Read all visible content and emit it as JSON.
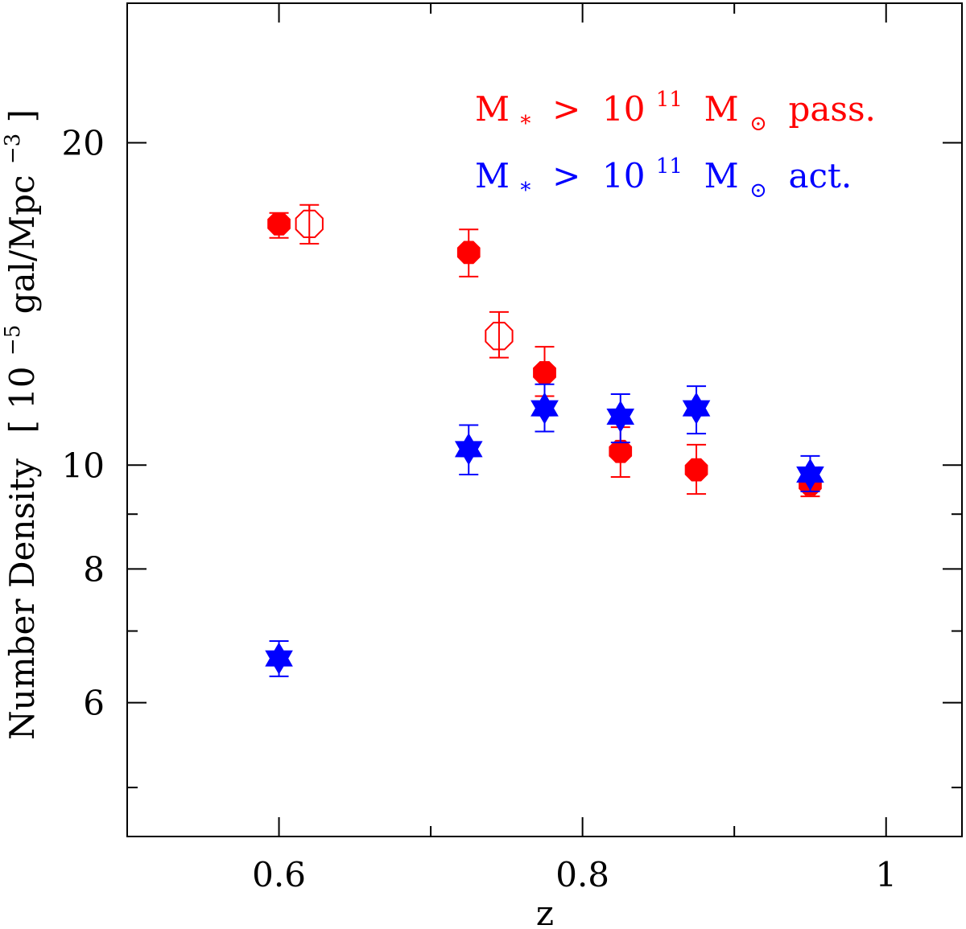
{
  "chart_data": {
    "type": "scatter",
    "title": "",
    "xlabel": "z",
    "ylabel": {
      "main": "Number Density",
      "bracket_open": "[",
      "base": "10",
      "exponent": "−5",
      "unit": " gal/Mpc",
      "unit_exponent": "−3",
      "bracket_close": "]"
    },
    "xlim": [
      0.5,
      1.05
    ],
    "ylim": [
      4.5,
      27.0
    ],
    "yscale": "log",
    "x_ticks": [
      {
        "value": 0.6,
        "label": "0.6"
      },
      {
        "value": 0.8,
        "label": "0.8"
      },
      {
        "value": 1.0,
        "label": "1"
      }
    ],
    "y_ticks": [
      {
        "value": 6,
        "label": "6"
      },
      {
        "value": 8,
        "label": "8"
      },
      {
        "value": 10,
        "label": "10"
      },
      {
        "value": 20,
        "label": "20"
      }
    ],
    "y_minor_ticks": [
      5,
      7,
      9
    ],
    "x_minor_ticks": [
      0.5,
      0.7,
      0.9
    ],
    "legend": {
      "placement": "top-right",
      "entries": [
        {
          "symbol": "M",
          "sub": "*",
          "rel": " > ",
          "base": "10",
          "sup": "11",
          "unit": " M",
          "sun": "⊙",
          "tag": " pass.",
          "color": "#ff0000"
        },
        {
          "symbol": "M",
          "sub": "*",
          "rel": " > ",
          "base": "10",
          "sup": "11",
          "unit": " M",
          "sun": "⊙",
          "tag": " act.",
          "color": "#0000ff"
        }
      ]
    },
    "series": [
      {
        "name": "M* > 10^11 Msun passive",
        "marker": "filled-circle",
        "color": "#ff0000",
        "points": [
          {
            "x": 0.6,
            "y": 16.8,
            "ylo": 16.3,
            "yhi": 17.2
          },
          {
            "x": 0.725,
            "y": 15.8,
            "ylo": 15.0,
            "yhi": 16.6
          },
          {
            "x": 0.775,
            "y": 12.2,
            "ylo": 11.6,
            "yhi": 12.9
          },
          {
            "x": 0.825,
            "y": 10.3,
            "ylo": 9.75,
            "yhi": 10.85
          },
          {
            "x": 0.875,
            "y": 9.9,
            "ylo": 9.4,
            "yhi": 10.45
          },
          {
            "x": 0.95,
            "y": 9.6,
            "ylo": 9.35,
            "yhi": 9.85
          }
        ]
      },
      {
        "name": "M* > 10^11 Msun passive (open)",
        "marker": "open-circle",
        "color": "#ff0000",
        "points": [
          {
            "x": 0.62,
            "y": 16.8,
            "ylo": 16.1,
            "yhi": 17.5
          },
          {
            "x": 0.745,
            "y": 13.2,
            "ylo": 12.6,
            "yhi": 13.9
          }
        ]
      },
      {
        "name": "M* > 10^11 Msun active",
        "marker": "star",
        "color": "#0000ff",
        "points": [
          {
            "x": 0.6,
            "y": 6.6,
            "ylo": 6.35,
            "yhi": 6.85
          },
          {
            "x": 0.725,
            "y": 10.35,
            "ylo": 9.8,
            "yhi": 10.9
          },
          {
            "x": 0.775,
            "y": 11.3,
            "ylo": 10.75,
            "yhi": 11.9
          },
          {
            "x": 0.825,
            "y": 11.1,
            "ylo": 10.5,
            "yhi": 11.65
          },
          {
            "x": 0.875,
            "y": 11.3,
            "ylo": 10.7,
            "yhi": 11.85
          },
          {
            "x": 0.95,
            "y": 9.8,
            "ylo": 9.45,
            "yhi": 10.2
          }
        ]
      }
    ]
  }
}
